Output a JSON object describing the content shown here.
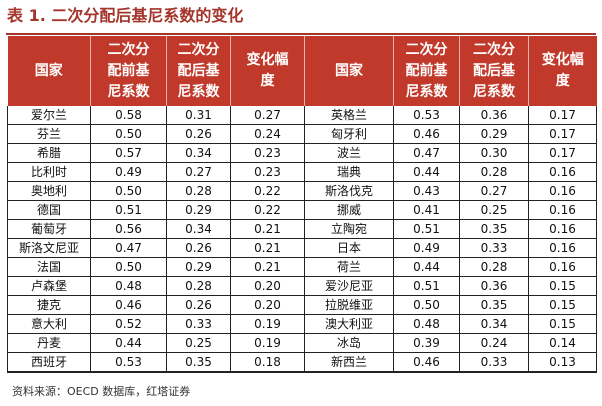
{
  "title": "表 1. 二次分配后基尼系数的变化",
  "headers": [
    "国家",
    "二次分配前基尼系数",
    "二次分配后基尼系数",
    "变化幅度",
    "国家",
    "二次分配前基尼系数",
    "二次分配后基尼系数",
    "变化幅度"
  ],
  "rows": [
    [
      "爱尔兰",
      "0.58",
      "0.31",
      "0.27",
      "英格兰",
      "0.53",
      "0.36",
      "0.17"
    ],
    [
      "芬兰",
      "0.50",
      "0.26",
      "0.24",
      "匈牙利",
      "0.46",
      "0.29",
      "0.17"
    ],
    [
      "希腊",
      "0.57",
      "0.34",
      "0.23",
      "波兰",
      "0.47",
      "0.30",
      "0.17"
    ],
    [
      "比利时",
      "0.49",
      "0.27",
      "0.23",
      "瑞典",
      "0.44",
      "0.28",
      "0.16"
    ],
    [
      "奥地利",
      "0.50",
      "0.28",
      "0.22",
      "斯洛伐克",
      "0.43",
      "0.27",
      "0.16"
    ],
    [
      "德国",
      "0.51",
      "0.29",
      "0.22",
      "挪威",
      "0.41",
      "0.25",
      "0.16"
    ],
    [
      "葡萄牙",
      "0.56",
      "0.34",
      "0.21",
      "立陶宛",
      "0.51",
      "0.35",
      "0.16"
    ],
    [
      "斯洛文尼亚",
      "0.47",
      "0.26",
      "0.21",
      "日本",
      "0.49",
      "0.33",
      "0.16"
    ],
    [
      "法国",
      "0.50",
      "0.29",
      "0.21",
      "荷兰",
      "0.44",
      "0.28",
      "0.16"
    ],
    [
      "卢森堡",
      "0.48",
      "0.28",
      "0.20",
      "爱沙尼亚",
      "0.51",
      "0.36",
      "0.15"
    ],
    [
      "捷克",
      "0.46",
      "0.26",
      "0.20",
      "拉脱维亚",
      "0.50",
      "0.35",
      "0.15"
    ],
    [
      "意大利",
      "0.52",
      "0.33",
      "0.19",
      "澳大利亚",
      "0.48",
      "0.34",
      "0.15"
    ],
    [
      "丹麦",
      "0.44",
      "0.25",
      "0.19",
      "冰岛",
      "0.39",
      "0.24",
      "0.14"
    ],
    [
      "西班牙",
      "0.53",
      "0.35",
      "0.18",
      "新西兰",
      "0.46",
      "0.33",
      "0.13"
    ]
  ],
  "source": "资料来源：OECD 数据库，红塔证券",
  "colors": {
    "header_bg": "#c0392b",
    "title": "#a3352b"
  }
}
